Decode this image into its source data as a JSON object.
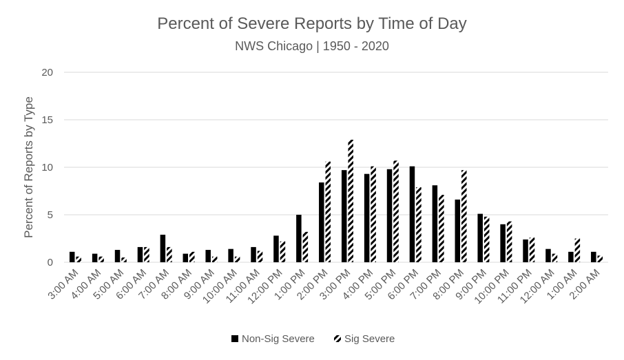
{
  "chart_data": {
    "type": "bar",
    "title": "Percent of Severe Reports by Time of Day",
    "subtitle": "NWS Chicago | 1950 - 2020",
    "ylabel": "Percent of Reports by Type",
    "xlabel": "",
    "ylim": [
      0,
      20
    ],
    "yticks": [
      "0",
      "5",
      "10",
      "15",
      "20"
    ],
    "grid": true,
    "legend_position": "bottom",
    "categories": [
      "3:00 AM",
      "4:00 AM",
      "5:00 AM",
      "6:00 AM",
      "7:00 AM",
      "8:00 AM",
      "9:00 AM",
      "10:00 AM",
      "11:00 AM",
      "12:00 PM",
      "1:00 PM",
      "2:00 PM",
      "3:00 PM",
      "4:00 PM",
      "5:00 PM",
      "6:00 PM",
      "7:00 PM",
      "8:00 PM",
      "9:00 PM",
      "10:00 PM",
      "11:00 PM",
      "12:00 AM",
      "1:00 AM",
      "2:00 AM"
    ],
    "series": [
      {
        "name": "Non-Sig Severe",
        "fill": "solid",
        "color": "#000000",
        "values": [
          1.1,
          0.9,
          1.3,
          1.6,
          2.9,
          0.9,
          1.3,
          1.4,
          1.6,
          2.8,
          5.0,
          8.4,
          9.7,
          9.3,
          9.8,
          10.1,
          8.1,
          6.6,
          5.1,
          4.0,
          2.4,
          1.4,
          1.1,
          1.1
        ]
      },
      {
        "name": "Sig Severe",
        "fill": "diagonal-stripe",
        "color": "#000000",
        "values": [
          0.6,
          0.6,
          0.5,
          1.6,
          1.6,
          1.1,
          0.6,
          0.6,
          1.2,
          2.2,
          3.2,
          10.6,
          12.9,
          10.1,
          10.7,
          7.9,
          7.1,
          9.7,
          4.8,
          4.3,
          2.6,
          0.9,
          2.5,
          0.7
        ]
      }
    ]
  }
}
